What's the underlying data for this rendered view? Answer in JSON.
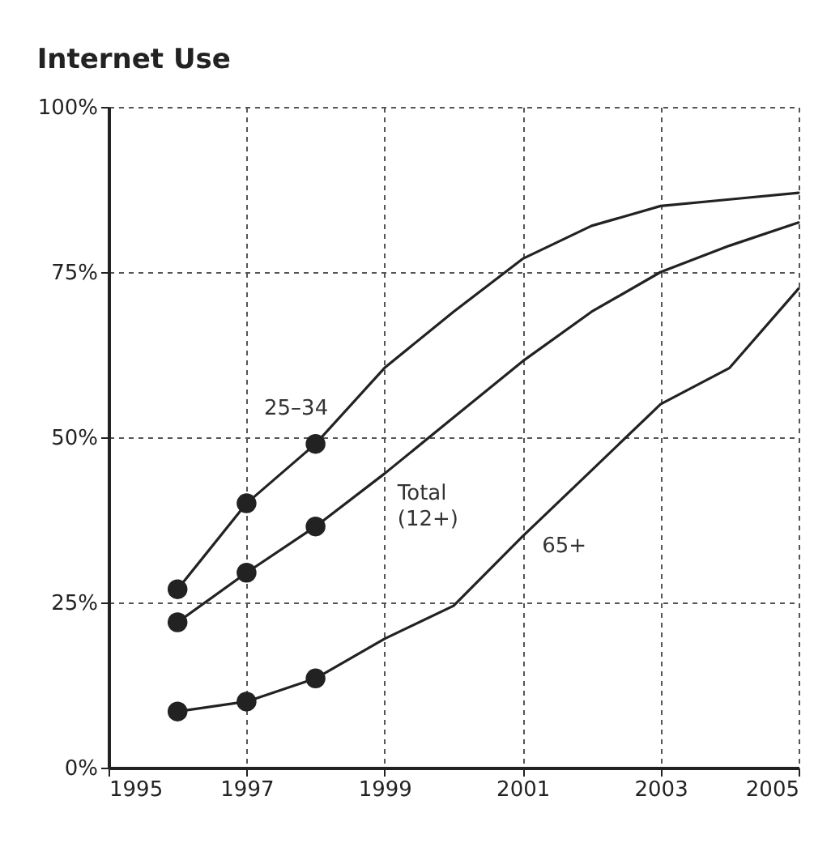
{
  "chart_data": {
    "type": "line",
    "title": "Internet Use",
    "x": [
      1996,
      1997,
      1998,
      1999,
      2000,
      2001,
      2002,
      2003,
      2004,
      2005
    ],
    "series": [
      {
        "name": "25–34",
        "color": "#222222",
        "values": [
          27,
          40,
          49,
          60.5,
          69,
          77,
          82,
          85,
          86,
          87
        ]
      },
      {
        "name": "Total (12+)",
        "color": "#222222",
        "values": [
          22,
          29.5,
          36.5,
          44.5,
          53,
          61.5,
          69,
          75,
          79,
          82.5
        ]
      },
      {
        "name": "65+",
        "color": "#222222",
        "values": [
          8.5,
          10,
          13.5,
          19.5,
          24.5,
          35,
          45,
          55,
          60.5,
          72.5
        ]
      },
      {
        "type": "scatter",
        "color": "#222222",
        "x": [
          1996,
          1997,
          1998
        ],
        "values": [
          27,
          40,
          49
        ],
        "marker": "circle"
      },
      {
        "type": "scatter",
        "color": "#222222",
        "x": [
          1996,
          1997,
          1998
        ],
        "values": [
          22,
          29.5,
          36.5
        ],
        "marker": "circle"
      },
      {
        "type": "scatter",
        "color": "#222222",
        "x": [
          1996,
          1997,
          1998
        ],
        "values": [
          8.5,
          10,
          13.5
        ],
        "marker": "circle"
      }
    ],
    "xlim": [
      1995,
      2005
    ],
    "xticks": [
      1995,
      1997,
      1999,
      2001,
      2003,
      2005
    ],
    "ylim": [
      0,
      100
    ],
    "yticks": [
      {
        "value": 0,
        "label": "0%"
      },
      {
        "value": 25,
        "label": "25%"
      },
      {
        "value": 50,
        "label": "50%"
      },
      {
        "value": 75,
        "label": "75%"
      },
      {
        "value": 100,
        "label": "100%"
      }
    ],
    "grid": true,
    "line_style": "solid",
    "legend": false
  }
}
